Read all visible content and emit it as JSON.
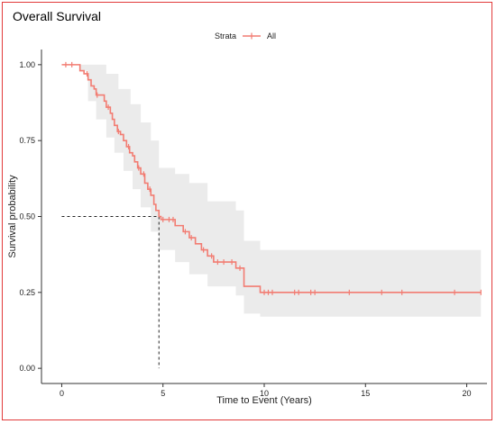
{
  "chart_data": {
    "type": "line",
    "title": "Overall Survival",
    "xlabel": "Time to Event (Years)",
    "ylabel": "Survival probability",
    "xlim": [
      -1,
      21
    ],
    "ylim": [
      -0.05,
      1.05
    ],
    "xticks": [
      0,
      5,
      10,
      15,
      20
    ],
    "yticks": [
      0.0,
      0.25,
      0.5,
      0.75,
      1.0
    ],
    "grid": false,
    "legend": {
      "title": "Strata",
      "placement": "top-center",
      "entries": [
        "All"
      ]
    },
    "colors": {
      "curve": "#f27c72",
      "band": "#ebebeb",
      "frame": "#e23a3a",
      "reference": "#222222"
    },
    "median_survival": {
      "x": 4.8,
      "y": 0.5
    },
    "series": [
      {
        "name": "All",
        "steps": [
          [
            0,
            1.0
          ],
          [
            0.9,
            0.98
          ],
          [
            1.1,
            0.97
          ],
          [
            1.3,
            0.95
          ],
          [
            1.45,
            0.93
          ],
          [
            1.6,
            0.92
          ],
          [
            1.7,
            0.9
          ],
          [
            2.1,
            0.88
          ],
          [
            2.2,
            0.86
          ],
          [
            2.4,
            0.84
          ],
          [
            2.5,
            0.82
          ],
          [
            2.6,
            0.8
          ],
          [
            2.75,
            0.78
          ],
          [
            2.9,
            0.77
          ],
          [
            3.05,
            0.75
          ],
          [
            3.2,
            0.73
          ],
          [
            3.35,
            0.71
          ],
          [
            3.5,
            0.7
          ],
          [
            3.6,
            0.68
          ],
          [
            3.75,
            0.66
          ],
          [
            3.9,
            0.64
          ],
          [
            4.1,
            0.61
          ],
          [
            4.25,
            0.59
          ],
          [
            4.4,
            0.57
          ],
          [
            4.55,
            0.54
          ],
          [
            4.65,
            0.52
          ],
          [
            4.8,
            0.5
          ],
          [
            4.9,
            0.49
          ],
          [
            5.6,
            0.47
          ],
          [
            6.0,
            0.45
          ],
          [
            6.3,
            0.43
          ],
          [
            6.6,
            0.41
          ],
          [
            6.9,
            0.39
          ],
          [
            7.2,
            0.37
          ],
          [
            7.5,
            0.35
          ],
          [
            8.6,
            0.33
          ],
          [
            9.0,
            0.27
          ],
          [
            9.8,
            0.25
          ]
        ],
        "end_x": 20.7,
        "censored": [
          [
            0.2,
            1.0
          ],
          [
            0.5,
            1.0
          ],
          [
            1.25,
            0.97
          ],
          [
            1.75,
            0.9
          ],
          [
            2.3,
            0.86
          ],
          [
            2.8,
            0.78
          ],
          [
            3.3,
            0.73
          ],
          [
            3.8,
            0.66
          ],
          [
            4.05,
            0.64
          ],
          [
            4.35,
            0.59
          ],
          [
            5.0,
            0.49
          ],
          [
            5.3,
            0.49
          ],
          [
            5.5,
            0.49
          ],
          [
            6.1,
            0.45
          ],
          [
            6.4,
            0.43
          ],
          [
            7.0,
            0.39
          ],
          [
            7.4,
            0.37
          ],
          [
            7.7,
            0.35
          ],
          [
            8.0,
            0.35
          ],
          [
            8.4,
            0.35
          ],
          [
            8.8,
            0.33
          ],
          [
            10.0,
            0.25
          ],
          [
            10.2,
            0.25
          ],
          [
            10.4,
            0.25
          ],
          [
            11.5,
            0.25
          ],
          [
            11.7,
            0.25
          ],
          [
            12.3,
            0.25
          ],
          [
            12.5,
            0.25
          ],
          [
            14.2,
            0.25
          ],
          [
            15.8,
            0.25
          ],
          [
            16.8,
            0.25
          ],
          [
            19.4,
            0.25
          ],
          [
            20.7,
            0.25
          ]
        ],
        "ci_upper": [
          [
            0,
            1.0
          ],
          [
            1.0,
            1.0
          ],
          [
            1.6,
            1.0
          ],
          [
            2.2,
            0.97
          ],
          [
            2.8,
            0.92
          ],
          [
            3.4,
            0.87
          ],
          [
            3.9,
            0.81
          ],
          [
            4.4,
            0.75
          ],
          [
            4.8,
            0.66
          ],
          [
            5.6,
            0.64
          ],
          [
            6.3,
            0.61
          ],
          [
            7.2,
            0.55
          ],
          [
            8.6,
            0.52
          ],
          [
            9.0,
            0.42
          ],
          [
            9.8,
            0.39
          ],
          [
            20.7,
            0.39
          ]
        ],
        "ci_lower": [
          [
            0,
            1.0
          ],
          [
            0.9,
            0.98
          ],
          [
            1.3,
            0.88
          ],
          [
            1.7,
            0.82
          ],
          [
            2.2,
            0.76
          ],
          [
            2.6,
            0.71
          ],
          [
            3.05,
            0.65
          ],
          [
            3.5,
            0.59
          ],
          [
            3.9,
            0.53
          ],
          [
            4.4,
            0.45
          ],
          [
            4.8,
            0.39
          ],
          [
            5.6,
            0.35
          ],
          [
            6.3,
            0.31
          ],
          [
            7.2,
            0.27
          ],
          [
            8.6,
            0.24
          ],
          [
            9.0,
            0.18
          ],
          [
            9.8,
            0.17
          ],
          [
            20.7,
            0.17
          ]
        ]
      }
    ]
  }
}
